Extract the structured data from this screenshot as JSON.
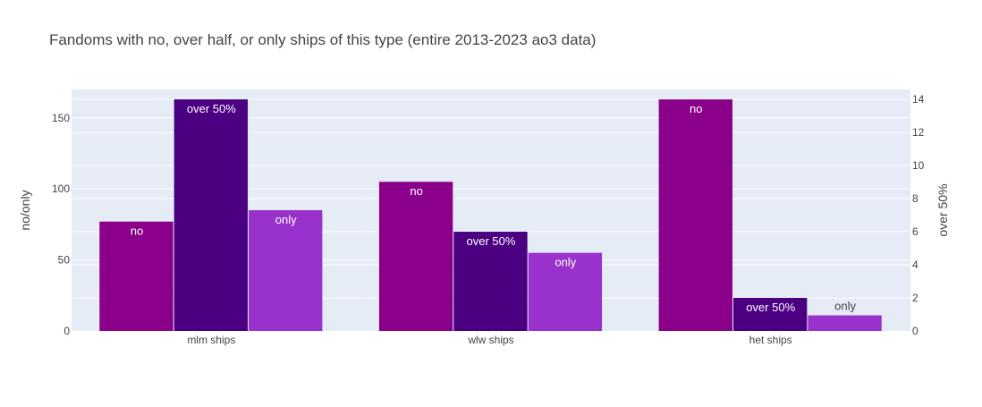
{
  "chart_data": {
    "type": "bar",
    "title": "Fandoms with no, over half, or only ships of this type (entire 2013-2023 ao3 data)",
    "categories": [
      "mlm ships",
      "wlw ships",
      "het ships"
    ],
    "ylabel": "no/only",
    "y2label": "over 50%",
    "ylim": [
      0,
      170
    ],
    "y2lim": [
      0,
      14.6
    ],
    "yticks": [
      0,
      50,
      100,
      150
    ],
    "y2ticks": [
      0,
      2,
      4,
      6,
      8,
      10,
      12,
      14
    ],
    "series": [
      {
        "name": "no",
        "axis": "left",
        "color": "#8b008b",
        "label_color": "#ffffff",
        "values": [
          77,
          105,
          163
        ]
      },
      {
        "name": "over 50%",
        "axis": "right",
        "color": "#4b0082",
        "label_color": "#ffffff",
        "values": [
          14,
          6,
          2
        ]
      },
      {
        "name": "only",
        "axis": "left",
        "color": "#9932cc",
        "label_color": "#ffffff",
        "values": [
          85,
          55,
          11
        ]
      }
    ],
    "colors": {
      "plot_bg": "#e5ecf6",
      "grid": "#ffffff",
      "text": "#444444",
      "title": "#444444"
    }
  }
}
